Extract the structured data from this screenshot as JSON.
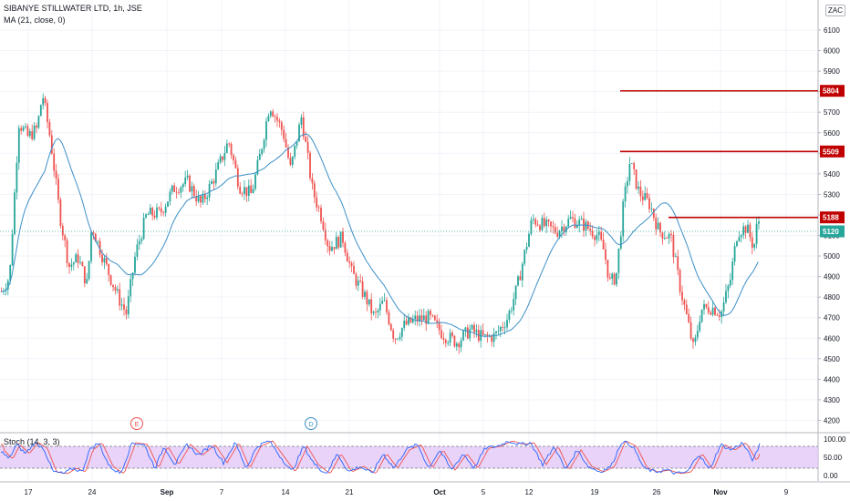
{
  "header": {
    "title": "SIBANYE STILLWATER LTD, 1h, JSE",
    "ma_label": "MA (21, close, 0)",
    "currency": "ZAC"
  },
  "stoch": {
    "label": "Stoch (14, 3, 3)",
    "axis_ticks": [
      "100.00",
      "50.00",
      "0.00"
    ]
  },
  "colors": {
    "up": "#26a69a",
    "down": "#ef5350",
    "ma": "#3d8fc7",
    "level": "#c00000",
    "last_price": "#26a69a",
    "stoch_k": "#2962ff",
    "stoch_d": "#ef5350",
    "stoch_band": "#e1c4f7"
  },
  "events": [
    {
      "letter": "E",
      "color": "#ef5350",
      "x_label": "Sep"
    },
    {
      "letter": "D",
      "color": "#3d8fc7",
      "x_label": "14"
    }
  ],
  "chart_data": {
    "type": "candlestick",
    "title": "SIBANYE STILLWATER LTD, 1h, JSE",
    "y_axis_ticks": [
      6100,
      6000,
      5900,
      5800,
      5700,
      5600,
      5500,
      5400,
      5300,
      5200,
      5100,
      5000,
      4900,
      4800,
      4700,
      4600,
      4500,
      4400,
      4300,
      4200
    ],
    "ylim": [
      4140,
      6210
    ],
    "x_axis_labels": [
      "17",
      "24",
      "Sep",
      "7",
      "14",
      "21",
      "Oct",
      "5",
      "12",
      "19",
      "26",
      "Nov",
      "9"
    ],
    "price_levels": [
      {
        "label": "5804",
        "value": 5804,
        "type": "resistance"
      },
      {
        "label": "5509",
        "value": 5509,
        "type": "resistance"
      },
      {
        "label": "5188",
        "value": 5188,
        "type": "resistance"
      }
    ],
    "last_price": {
      "label": "5120",
      "value": 5120
    },
    "close_path": [
      [
        0,
        4820
      ],
      [
        10,
        4900
      ],
      [
        20,
        5650
      ],
      [
        30,
        5580
      ],
      [
        40,
        5620
      ],
      [
        46,
        5790
      ],
      [
        55,
        5560
      ],
      [
        65,
        5200
      ],
      [
        75,
        4950
      ],
      [
        85,
        4990
      ],
      [
        95,
        4860
      ],
      [
        100,
        5150
      ],
      [
        110,
        5020
      ],
      [
        120,
        4900
      ],
      [
        130,
        4790
      ],
      [
        138,
        4720
      ],
      [
        148,
        5010
      ],
      [
        160,
        5200
      ],
      [
        175,
        5210
      ],
      [
        190,
        5330
      ],
      [
        205,
        5360
      ],
      [
        220,
        5250
      ],
      [
        235,
        5390
      ],
      [
        250,
        5560
      ],
      [
        262,
        5340
      ],
      [
        275,
        5300
      ],
      [
        285,
        5500
      ],
      [
        295,
        5740
      ],
      [
        310,
        5600
      ],
      [
        318,
        5420
      ],
      [
        330,
        5680
      ],
      [
        342,
        5320
      ],
      [
        352,
        5190
      ],
      [
        360,
        5040
      ],
      [
        375,
        5090
      ],
      [
        385,
        4920
      ],
      [
        400,
        4800
      ],
      [
        410,
        4700
      ],
      [
        420,
        4780
      ],
      [
        432,
        4600
      ],
      [
        442,
        4660
      ],
      [
        455,
        4690
      ],
      [
        470,
        4700
      ],
      [
        485,
        4620
      ],
      [
        500,
        4580
      ],
      [
        515,
        4640
      ],
      [
        530,
        4600
      ],
      [
        542,
        4610
      ],
      [
        556,
        4700
      ],
      [
        566,
        4840
      ],
      [
        575,
        5020
      ],
      [
        583,
        5180
      ],
      [
        595,
        5150
      ],
      [
        610,
        5120
      ],
      [
        625,
        5180
      ],
      [
        640,
        5150
      ],
      [
        655,
        5100
      ],
      [
        662,
        5020
      ],
      [
        668,
        4870
      ],
      [
        675,
        4900
      ],
      [
        683,
        5250
      ],
      [
        690,
        5460
      ],
      [
        700,
        5310
      ],
      [
        712,
        5250
      ],
      [
        722,
        5120
      ],
      [
        735,
        5090
      ],
      [
        745,
        4850
      ],
      [
        755,
        4650
      ],
      [
        760,
        4540
      ],
      [
        768,
        4740
      ],
      [
        780,
        4750
      ],
      [
        790,
        4720
      ],
      [
        800,
        4880
      ],
      [
        808,
        5120
      ],
      [
        818,
        5140
      ],
      [
        826,
        5040
      ],
      [
        830,
        5170
      ]
    ],
    "stoch_path": [
      [
        0,
        70
      ],
      [
        10,
        45
      ],
      [
        18,
        85
      ],
      [
        28,
        60
      ],
      [
        38,
        90
      ],
      [
        48,
        75
      ],
      [
        58,
        10
      ],
      [
        70,
        5
      ],
      [
        80,
        20
      ],
      [
        90,
        10
      ],
      [
        98,
        70
      ],
      [
        108,
        90
      ],
      [
        120,
        25
      ],
      [
        132,
        5
      ],
      [
        145,
        90
      ],
      [
        158,
        85
      ],
      [
        170,
        20
      ],
      [
        180,
        80
      ],
      [
        192,
        30
      ],
      [
        205,
        85
      ],
      [
        218,
        55
      ],
      [
        232,
        85
      ],
      [
        245,
        35
      ],
      [
        258,
        90
      ],
      [
        270,
        20
      ],
      [
        282,
        80
      ],
      [
        295,
        95
      ],
      [
        308,
        50
      ],
      [
        320,
        10
      ],
      [
        333,
        80
      ],
      [
        345,
        30
      ],
      [
        358,
        5
      ],
      [
        370,
        60
      ],
      [
        382,
        10
      ],
      [
        395,
        25
      ],
      [
        408,
        5
      ],
      [
        420,
        60
      ],
      [
        432,
        20
      ],
      [
        445,
        70
      ],
      [
        458,
        85
      ],
      [
        470,
        20
      ],
      [
        482,
        70
      ],
      [
        495,
        15
      ],
      [
        508,
        60
      ],
      [
        520,
        20
      ],
      [
        532,
        75
      ],
      [
        545,
        80
      ],
      [
        558,
        95
      ],
      [
        570,
        85
      ],
      [
        582,
        90
      ],
      [
        595,
        30
      ],
      [
        608,
        80
      ],
      [
        620,
        15
      ],
      [
        633,
        70
      ],
      [
        645,
        25
      ],
      [
        658,
        10
      ],
      [
        670,
        25
      ],
      [
        682,
        95
      ],
      [
        694,
        80
      ],
      [
        706,
        20
      ],
      [
        718,
        10
      ],
      [
        730,
        15
      ],
      [
        742,
        5
      ],
      [
        754,
        10
      ],
      [
        766,
        60
      ],
      [
        778,
        15
      ],
      [
        790,
        85
      ],
      [
        802,
        70
      ],
      [
        814,
        90
      ],
      [
        826,
        40
      ],
      [
        833,
        85
      ]
    ]
  }
}
